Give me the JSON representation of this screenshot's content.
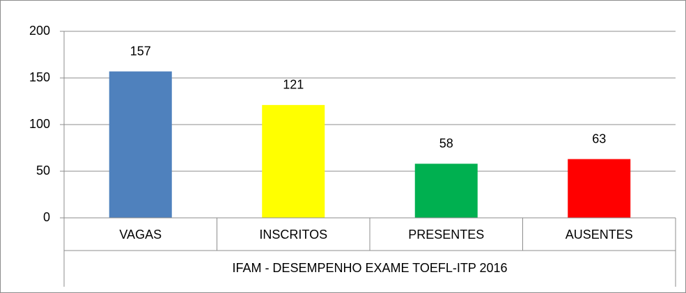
{
  "chart_data": {
    "type": "bar",
    "categories": [
      "VAGAS",
      "INSCRITOS",
      "PRESENTES",
      "AUSENTES"
    ],
    "values": [
      157,
      121,
      58,
      63
    ],
    "colors": [
      "#4f81bd",
      "#ffff00",
      "#00b050",
      "#ff0000"
    ],
    "group_label": "IFAM - DESEMPENHO EXAME TOEFL-ITP 2016",
    "ylim": [
      0,
      200
    ],
    "yticks": [
      0,
      50,
      100,
      150,
      200
    ],
    "grid": true
  }
}
